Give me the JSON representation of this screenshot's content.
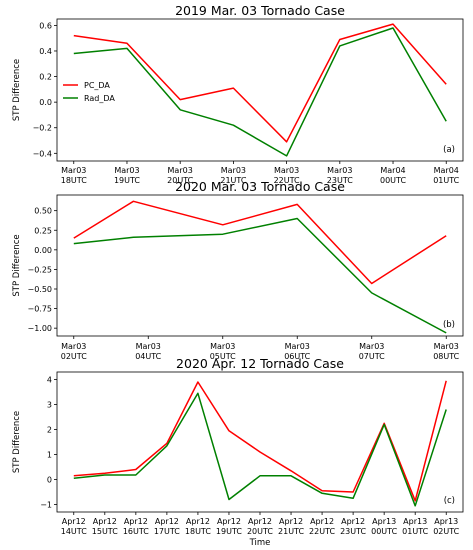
{
  "chart_data": [
    {
      "type": "line",
      "title": "2019 Mar. 03 Tornado Case",
      "ylabel": "STP Difference",
      "xlabel": "",
      "panel_label": "(a)",
      "categories": [
        [
          "Mar03",
          "18UTC"
        ],
        [
          "Mar03",
          "19UTC"
        ],
        [
          "Mar03",
          "20UTC"
        ],
        [
          "Mar03",
          "21UTC"
        ],
        [
          "Mar03",
          "22UTC"
        ],
        [
          "Mar03",
          "23UTC"
        ],
        [
          "Mar04",
          "00UTC"
        ],
        [
          "Mar04",
          "01UTC"
        ]
      ],
      "yticks": [
        -0.4,
        -0.2,
        0.0,
        0.2,
        0.4,
        0.6
      ],
      "ytick_labels": [
        "−0.4",
        "−0.2",
        "0.0",
        "0.2",
        "0.4",
        "0.6"
      ],
      "ylim": [
        -0.46,
        0.65
      ],
      "legend": {
        "location": "upper-left",
        "entries": [
          "PC_DA",
          "Rad_DA"
        ]
      },
      "series": [
        {
          "name": "PC_DA",
          "color": "#ff0000",
          "values": [
            0.52,
            0.46,
            0.02,
            0.11,
            -0.31,
            0.49,
            0.61,
            0.14
          ]
        },
        {
          "name": "Rad_DA",
          "color": "#008000",
          "values": [
            0.38,
            0.42,
            -0.06,
            -0.18,
            -0.42,
            0.44,
            0.58,
            -0.15
          ]
        }
      ]
    },
    {
      "type": "line",
      "title": "2020 Mar. 03 Tornado Case",
      "ylabel": "STP Difference",
      "xlabel": "",
      "panel_label": "(b)",
      "categories": [
        [
          "Mar03",
          "02UTC"
        ],
        [
          "Mar03",
          "04UTC"
        ],
        [
          "Mar03",
          "05UTC"
        ],
        [
          "Mar03",
          "06UTC"
        ],
        [
          "Mar03",
          "07UTC"
        ],
        [
          "Mar03",
          "08UTC"
        ]
      ],
      "x": [
        0,
        1.25,
        2.5,
        3.75,
        5,
        6.25
      ],
      "yticks": [
        -1.0,
        -0.75,
        -0.5,
        -0.25,
        0.0,
        0.25,
        0.5
      ],
      "ytick_labels": [
        "−1.00",
        "−0.75",
        "−0.50",
        "−0.25",
        "0.00",
        "0.25",
        "0.50"
      ],
      "ylim": [
        -1.1,
        0.7
      ],
      "series": [
        {
          "name": "PC_DA",
          "color": "#ff0000",
          "x": [
            0,
            1,
            2.5,
            3.75,
            5,
            6.25
          ],
          "values": [
            0.15,
            0.62,
            0.32,
            0.58,
            -0.43,
            0.18
          ]
        },
        {
          "name": "Rad_DA",
          "color": "#008000",
          "x": [
            0,
            1,
            2.5,
            3.75,
            5,
            6.25
          ],
          "values": [
            0.08,
            0.16,
            0.2,
            0.4,
            -0.55,
            -1.06
          ]
        }
      ]
    },
    {
      "type": "line",
      "title": "2020 Apr. 12 Tornado Case",
      "ylabel": "STP Difference",
      "xlabel": "Time",
      "panel_label": "(c)",
      "categories": [
        [
          "Apr12",
          "14UTC"
        ],
        [
          "Apr12",
          "15UTC"
        ],
        [
          "Apr12",
          "16UTC"
        ],
        [
          "Apr12",
          "17UTC"
        ],
        [
          "Apr12",
          "18UTC"
        ],
        [
          "Apr12",
          "19UTC"
        ],
        [
          "Apr12",
          "20UTC"
        ],
        [
          "Apr12",
          "21UTC"
        ],
        [
          "Apr12",
          "22UTC"
        ],
        [
          "Apr12",
          "23UTC"
        ],
        [
          "Apr13",
          "00UTC"
        ],
        [
          "Apr13",
          "01UTC"
        ],
        [
          "Apr13",
          "02UTC"
        ]
      ],
      "yticks": [
        -1,
        0,
        1,
        2,
        3,
        4
      ],
      "ytick_labels": [
        "−1",
        "0",
        "1",
        "2",
        "3",
        "4"
      ],
      "ylim": [
        -1.3,
        4.3
      ],
      "series": [
        {
          "name": "PC_DA",
          "color": "#ff0000",
          "values": [
            0.15,
            0.25,
            0.4,
            1.45,
            3.9,
            1.95,
            1.1,
            0.35,
            -0.45,
            -0.5,
            2.25,
            -0.85,
            3.95
          ]
        },
        {
          "name": "Rad_DA",
          "color": "#008000",
          "values": [
            0.05,
            0.18,
            0.18,
            1.35,
            3.45,
            -0.8,
            0.15,
            0.15,
            -0.55,
            -0.75,
            2.2,
            -1.05,
            2.8
          ]
        }
      ]
    }
  ]
}
